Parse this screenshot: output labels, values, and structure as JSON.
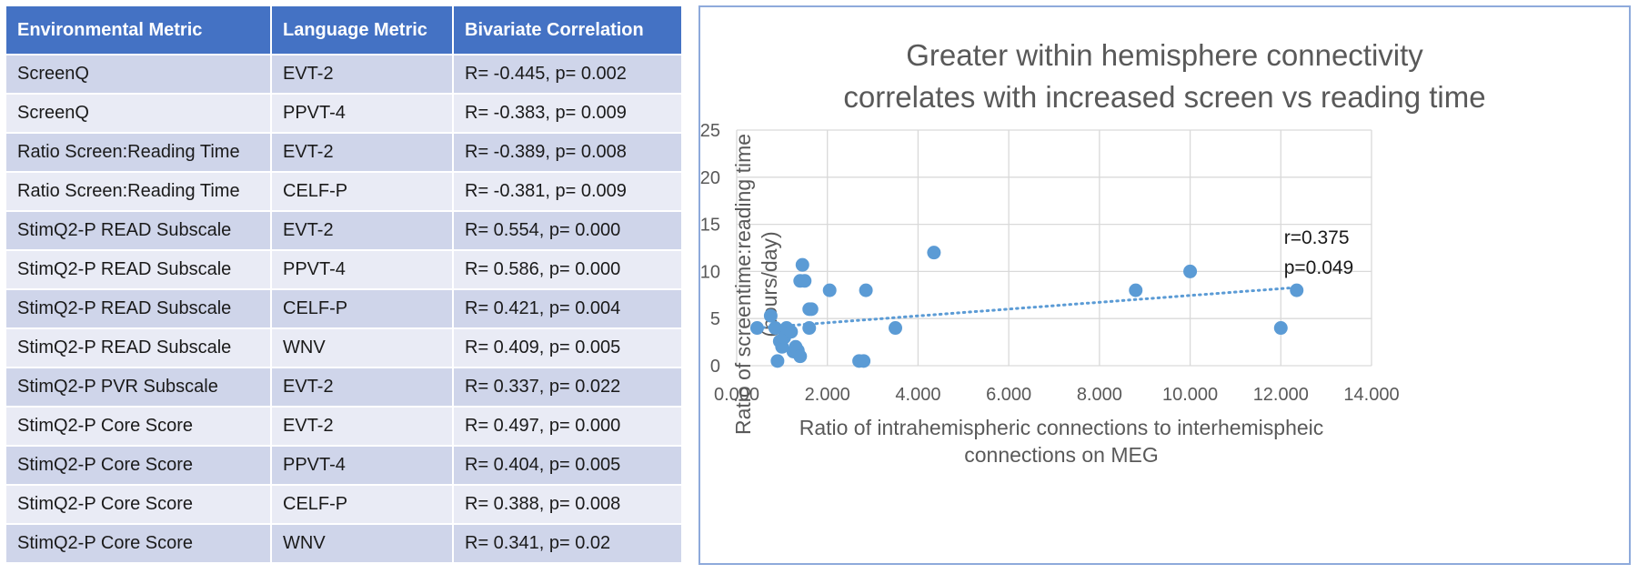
{
  "table": {
    "headers": [
      "Environmental Metric",
      "Language Metric",
      "Bivariate Correlation"
    ],
    "rows": [
      [
        "ScreenQ",
        "EVT-2",
        "R= -0.445, p= 0.002"
      ],
      [
        "ScreenQ",
        "PPVT-4",
        "R= -0.383, p= 0.009"
      ],
      [
        "Ratio Screen:Reading Time",
        "EVT-2",
        "R= -0.389, p= 0.008"
      ],
      [
        "Ratio Screen:Reading Time",
        "CELF-P",
        "R= -0.381, p= 0.009"
      ],
      [
        "StimQ2-P READ Subscale",
        "EVT-2",
        "R= 0.554, p= 0.000"
      ],
      [
        "StimQ2-P READ Subscale",
        "PPVT-4",
        "R= 0.586, p= 0.000"
      ],
      [
        "StimQ2-P READ Subscale",
        "CELF-P",
        "R= 0.421, p= 0.004"
      ],
      [
        "StimQ2-P READ Subscale",
        "WNV",
        "R= 0.409, p= 0.005"
      ],
      [
        "StimQ2-P PVR Subscale",
        "EVT-2",
        "R= 0.337, p= 0.022"
      ],
      [
        "StimQ2-P Core Score",
        "EVT-2",
        "R= 0.497, p= 0.000"
      ],
      [
        "StimQ2-P Core Score",
        "PPVT-4",
        "R= 0.404, p= 0.005"
      ],
      [
        "StimQ2-P Core Score",
        "CELF-P",
        "R= 0.388, p= 0.008"
      ],
      [
        "StimQ2-P Core Score",
        "WNV",
        "R= 0.341, p= 0.02"
      ]
    ]
  },
  "colors": {
    "header_bg": "#4472c4",
    "row_odd": "#cfd5ea",
    "row_even": "#e9ebf5",
    "point": "#5b9bd5",
    "trendline": "#5b9bd5",
    "gridline": "#d9d9d9",
    "panel_border": "#8eaadb"
  },
  "chart_data": {
    "type": "scatter",
    "title": "Greater within hemisphere connectivity\ncorrelates with increased screen vs reading time",
    "xlabel": "Ratio of intrahemispheric connections to interhemispheic connections on MEG",
    "xlabel_lines": [
      "Ratio of intrahemispheric connections to interhemispheic",
      "connections on MEG"
    ],
    "ylabel": "Ratio of screentime:reading time (hours/day)",
    "ylabel_lines": [
      "Ratio of screentime:reading time",
      "(hours/day)"
    ],
    "xlim": [
      0,
      14
    ],
    "ylim": [
      0,
      25
    ],
    "x_ticks": [
      0,
      2,
      4,
      6,
      8,
      10,
      12,
      14
    ],
    "x_tick_labels": [
      "0.000",
      "2.000",
      "4.000",
      "6.000",
      "8.000",
      "10.000",
      "12.000",
      "14.000"
    ],
    "y_ticks": [
      0,
      5,
      10,
      15,
      20,
      25
    ],
    "y_tick_labels": [
      "0",
      "5",
      "10",
      "15",
      "20",
      "25"
    ],
    "grid": true,
    "legend": "none",
    "points": {
      "x": [
        0.45,
        0.75,
        0.85,
        0.9,
        0.95,
        1.0,
        1.05,
        1.1,
        1.2,
        1.25,
        1.3,
        1.35,
        1.4,
        1.45,
        1.4,
        1.5,
        1.6,
        1.6,
        1.65,
        2.05,
        2.7,
        2.8,
        2.85,
        3.5,
        4.35,
        8.8,
        10.0,
        12.0,
        12.35
      ],
      "y": [
        4,
        5.3,
        4,
        0.5,
        2.6,
        2,
        3,
        4,
        3.6,
        1.5,
        2,
        1.6,
        1,
        10.7,
        9,
        9,
        6,
        4,
        6,
        8,
        0.5,
        0.5,
        8,
        4,
        12,
        8,
        10,
        4,
        8
      ]
    },
    "trendline": {
      "type": "linear",
      "style": "dotted",
      "x": [
        0.45,
        12.35
      ],
      "y": [
        4.0,
        8.3
      ]
    },
    "annotation_lines": [
      "r=0.375",
      "p=0.049"
    ]
  }
}
